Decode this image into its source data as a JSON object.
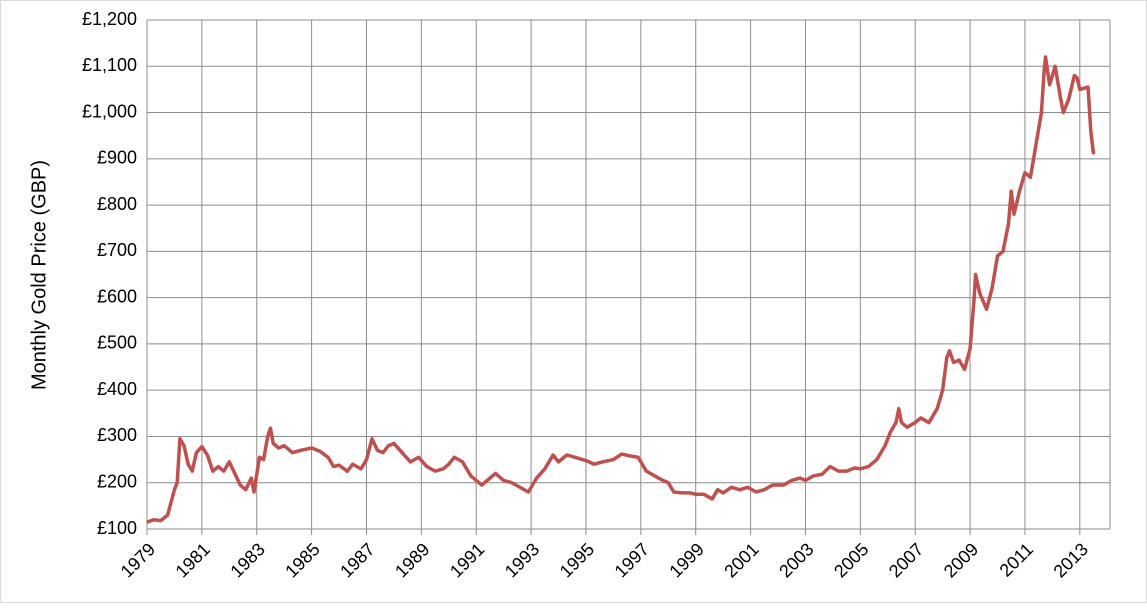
{
  "chart_data": {
    "type": "line",
    "ylabel": "Monthly Gold Price (GBP)",
    "color": "#c0504d",
    "grid": true,
    "xlim": [
      1979,
      2014.1
    ],
    "xticks": [
      1979,
      1981,
      1983,
      1985,
      1987,
      1989,
      1991,
      1993,
      1995,
      1997,
      1999,
      2001,
      2003,
      2005,
      2007,
      2009,
      2011,
      2013
    ],
    "ylim": [
      100,
      1200
    ],
    "yticks": [
      {
        "value": 100,
        "label": "£100"
      },
      {
        "value": 200,
        "label": "£200"
      },
      {
        "value": 300,
        "label": "£300"
      },
      {
        "value": 400,
        "label": "£400"
      },
      {
        "value": 500,
        "label": "£500"
      },
      {
        "value": 600,
        "label": "£600"
      },
      {
        "value": 700,
        "label": "£700"
      },
      {
        "value": 800,
        "label": "£800"
      },
      {
        "value": 900,
        "label": "£900"
      },
      {
        "value": 1000,
        "label": "£1,000"
      },
      {
        "value": 1100,
        "label": "£1,100"
      },
      {
        "value": 1200,
        "label": "£1,200"
      }
    ],
    "x": [
      1979.0,
      1979.25,
      1979.5,
      1979.75,
      1980.0,
      1980.1,
      1980.2,
      1980.35,
      1980.5,
      1980.65,
      1980.8,
      1981.0,
      1981.2,
      1981.4,
      1981.6,
      1981.8,
      1982.0,
      1982.2,
      1982.4,
      1982.6,
      1982.8,
      1982.9,
      1983.1,
      1983.25,
      1983.4,
      1983.5,
      1983.6,
      1983.8,
      1984.0,
      1984.3,
      1984.6,
      1985.0,
      1985.3,
      1985.6,
      1985.8,
      1986.0,
      1986.3,
      1986.5,
      1986.8,
      1987.0,
      1987.2,
      1987.4,
      1987.6,
      1987.8,
      1988.0,
      1988.3,
      1988.6,
      1988.9,
      1989.2,
      1989.5,
      1989.8,
      1990.0,
      1990.2,
      1990.5,
      1990.8,
      1991.0,
      1991.2,
      1991.5,
      1991.7,
      1992.0,
      1992.3,
      1992.6,
      1992.9,
      1993.2,
      1993.5,
      1993.7,
      1993.8,
      1994.0,
      1994.3,
      1994.6,
      1995.0,
      1995.3,
      1995.6,
      1996.0,
      1996.3,
      1996.6,
      1996.9,
      1997.2,
      1997.5,
      1997.8,
      1998.0,
      1998.2,
      1998.5,
      1998.8,
      1999.0,
      1999.3,
      1999.6,
      1999.8,
      2000.0,
      2000.3,
      2000.6,
      2000.9,
      2001.2,
      2001.5,
      2001.8,
      2002.2,
      2002.5,
      2002.8,
      2003.0,
      2003.3,
      2003.6,
      2003.9,
      2004.2,
      2004.5,
      2004.8,
      2005.0,
      2005.3,
      2005.6,
      2005.9,
      2006.1,
      2006.3,
      2006.4,
      2006.5,
      2006.7,
      2007.0,
      2007.2,
      2007.5,
      2007.8,
      2008.0,
      2008.15,
      2008.25,
      2008.4,
      2008.6,
      2008.8,
      2009.0,
      2009.15,
      2009.2,
      2009.35,
      2009.6,
      2009.8,
      2010.0,
      2010.2,
      2010.4,
      2010.5,
      2010.6,
      2010.8,
      2011.0,
      2011.2,
      2011.4,
      2011.6,
      2011.7,
      2011.75,
      2011.9,
      2012.1,
      2012.3,
      2012.4,
      2012.6,
      2012.8,
      2012.9,
      2013.0,
      2013.3,
      2013.4,
      2013.5
    ],
    "values": [
      115,
      120,
      118,
      130,
      185,
      200,
      295,
      280,
      240,
      225,
      265,
      278,
      260,
      225,
      235,
      225,
      245,
      220,
      195,
      185,
      210,
      180,
      255,
      250,
      300,
      318,
      285,
      275,
      280,
      265,
      270,
      275,
      268,
      255,
      235,
      238,
      225,
      240,
      230,
      250,
      295,
      270,
      265,
      280,
      285,
      265,
      245,
      255,
      235,
      225,
      230,
      240,
      255,
      245,
      215,
      205,
      195,
      210,
      220,
      205,
      200,
      190,
      180,
      210,
      230,
      250,
      260,
      245,
      260,
      255,
      248,
      240,
      245,
      250,
      262,
      258,
      255,
      225,
      215,
      205,
      200,
      180,
      178,
      178,
      175,
      175,
      165,
      185,
      178,
      190,
      185,
      190,
      180,
      185,
      195,
      195,
      205,
      210,
      205,
      215,
      218,
      235,
      225,
      225,
      232,
      230,
      235,
      250,
      280,
      310,
      330,
      360,
      330,
      320,
      330,
      340,
      330,
      360,
      400,
      470,
      485,
      460,
      465,
      445,
      490,
      600,
      650,
      610,
      575,
      620,
      690,
      700,
      760,
      830,
      780,
      830,
      870,
      860,
      930,
      1000,
      1090,
      1120,
      1060,
      1100,
      1030,
      1000,
      1030,
      1080,
      1075,
      1050,
      1055,
      960,
      910
    ]
  }
}
